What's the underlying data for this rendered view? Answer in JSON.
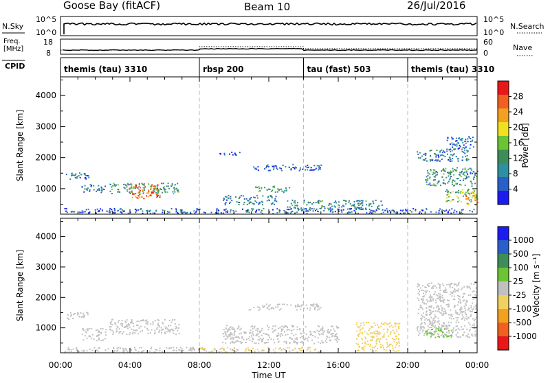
{
  "header": {
    "site": "Goose Bay (fitACF)",
    "beam": "Beam 10",
    "date": "26/Jul/2016"
  },
  "strips": {
    "nsky_label": "N.Sky",
    "nsearch_label": "N.Search",
    "nsky_left_ticks": [
      "10^5",
      "10^0"
    ],
    "nsky_right_ticks": [
      "10^5",
      "10^0"
    ],
    "freq_label": "Freq.",
    "freq_unit": "[MHz]",
    "freq_ticks": [
      "18",
      "8"
    ],
    "nave_label": "Nave",
    "nave_ticks": [
      "60",
      "0"
    ],
    "cpid_label": "CPID"
  },
  "cpid_segments": [
    {
      "label": "themis (tau) 3310",
      "start": 0,
      "end": 8
    },
    {
      "label": "rbsp 200",
      "start": 8,
      "end": 14
    },
    {
      "label": "tau (fast) 503",
      "start": 14,
      "end": 20
    },
    {
      "label": "themis (tau) 3310",
      "start": 20,
      "end": 24
    }
  ],
  "axes": {
    "xlabel": "Time UT",
    "x_ticks": [
      "00:00",
      "04:00",
      "08:00",
      "12:00",
      "16:00",
      "20:00",
      "00:00"
    ],
    "ylabel": "Slant Range [km]",
    "y_ticks": [
      "1000",
      "2000",
      "3000",
      "4000"
    ]
  },
  "colorbars": {
    "power_label": "Power [dB]",
    "power_ticks": [
      "4",
      "8",
      "12",
      "16",
      "20",
      "24",
      "28"
    ],
    "velocity_label": "Velocity [m s⁻¹]",
    "velocity_ticks": [
      "1000",
      "500",
      "100",
      "25",
      "-25",
      "-100",
      "-500",
      "-1000"
    ]
  },
  "chart_data": [
    {
      "type": "heatmap",
      "name": "power",
      "x_range_hours": [
        0,
        24
      ],
      "y_range_km": [
        180,
        4600
      ],
      "x_ticks_hours": [
        0,
        4,
        8,
        12,
        16,
        20,
        24
      ],
      "y_ticks_km": [
        1000,
        2000,
        3000,
        4000
      ],
      "colorscale": [
        "#1c1cf0",
        "#2a5fc9",
        "#2e8fa0",
        "#3d8c5a",
        "#6cc434",
        "#f0e020",
        "#f2a020",
        "#f06020",
        "#e81818"
      ],
      "clim": [
        0,
        30
      ],
      "legend": "right",
      "grid_vlines_hours": [
        8,
        14,
        20
      ],
      "bands": [
        {
          "t0": 0.3,
          "t1": 1.6,
          "r0": 1300,
          "r1": 1550,
          "v": 7
        },
        {
          "t0": 1.2,
          "t1": 2.6,
          "r0": 900,
          "r1": 1150,
          "v": 6
        },
        {
          "t0": 2.8,
          "t1": 6.8,
          "r0": 850,
          "r1": 1200,
          "v": 11
        },
        {
          "t0": 3.9,
          "t1": 5.7,
          "r0": 700,
          "r1": 1150,
          "v": 24
        },
        {
          "t0": 0.2,
          "t1": 23.8,
          "r0": 220,
          "r1": 380,
          "v": 6
        },
        {
          "t0": 9.3,
          "t1": 12.5,
          "r0": 500,
          "r1": 800,
          "v": 8
        },
        {
          "t0": 11.2,
          "t1": 13.2,
          "r0": 900,
          "r1": 1100,
          "v": 12
        },
        {
          "t0": 13.0,
          "t1": 18.5,
          "r0": 350,
          "r1": 650,
          "v": 9
        },
        {
          "t0": 10.8,
          "t1": 15.0,
          "r0": 1600,
          "r1": 1800,
          "v": 6
        },
        {
          "t0": 9.0,
          "t1": 10.5,
          "r0": 2100,
          "r1": 2200,
          "v": 4
        },
        {
          "t0": 20.5,
          "t1": 23.5,
          "r0": 1900,
          "r1": 2300,
          "v": 8
        },
        {
          "t0": 21.0,
          "t1": 24.0,
          "r0": 1100,
          "r1": 1700,
          "v": 10
        },
        {
          "t0": 22.0,
          "t1": 24.0,
          "r0": 600,
          "r1": 1000,
          "v": 14
        },
        {
          "t0": 23.3,
          "t1": 24.0,
          "r0": 500,
          "r1": 900,
          "v": 22
        },
        {
          "t0": 22.2,
          "t1": 23.8,
          "r0": 2300,
          "r1": 2700,
          "v": 5
        }
      ]
    },
    {
      "type": "heatmap",
      "name": "velocity",
      "x_range_hours": [
        0,
        24
      ],
      "y_range_km": [
        180,
        4600
      ],
      "x_ticks_hours": [
        0,
        4,
        8,
        12,
        16,
        20,
        24
      ],
      "y_ticks_km": [
        1000,
        2000,
        3000,
        4000
      ],
      "colorscale": [
        "#e81818",
        "#f06020",
        "#f2a020",
        "#f0d060",
        "#c0c0c0",
        "#6cc434",
        "#3d8c5a",
        "#2a5fc9",
        "#1c1cf0"
      ],
      "clim": [
        -1200,
        1200
      ],
      "legend": "right",
      "grid_vlines_hours": [
        8,
        14,
        20
      ],
      "bands": [
        {
          "t0": 0.3,
          "t1": 1.6,
          "r0": 1300,
          "r1": 1550,
          "v": 0
        },
        {
          "t0": 1.2,
          "t1": 2.6,
          "r0": 600,
          "r1": 1000,
          "v": 0
        },
        {
          "t0": 2.8,
          "t1": 6.8,
          "r0": 800,
          "r1": 1300,
          "v": 0
        },
        {
          "t0": 0.2,
          "t1": 8.0,
          "r0": 220,
          "r1": 380,
          "v": 0
        },
        {
          "t0": 8.0,
          "t1": 15.0,
          "r0": 220,
          "r1": 380,
          "v": -150
        },
        {
          "t0": 9.3,
          "t1": 16.0,
          "r0": 500,
          "r1": 1100,
          "v": 0
        },
        {
          "t0": 10.8,
          "t1": 15.0,
          "r0": 1600,
          "r1": 1800,
          "v": 0
        },
        {
          "t0": 20.5,
          "t1": 24.0,
          "r0": 700,
          "r1": 2500,
          "v": 0
        },
        {
          "t0": 21.0,
          "t1": 22.5,
          "r0": 700,
          "r1": 1000,
          "v": 300
        },
        {
          "t0": 17.0,
          "t1": 19.5,
          "r0": 250,
          "r1": 1200,
          "v": -300
        }
      ]
    }
  ]
}
